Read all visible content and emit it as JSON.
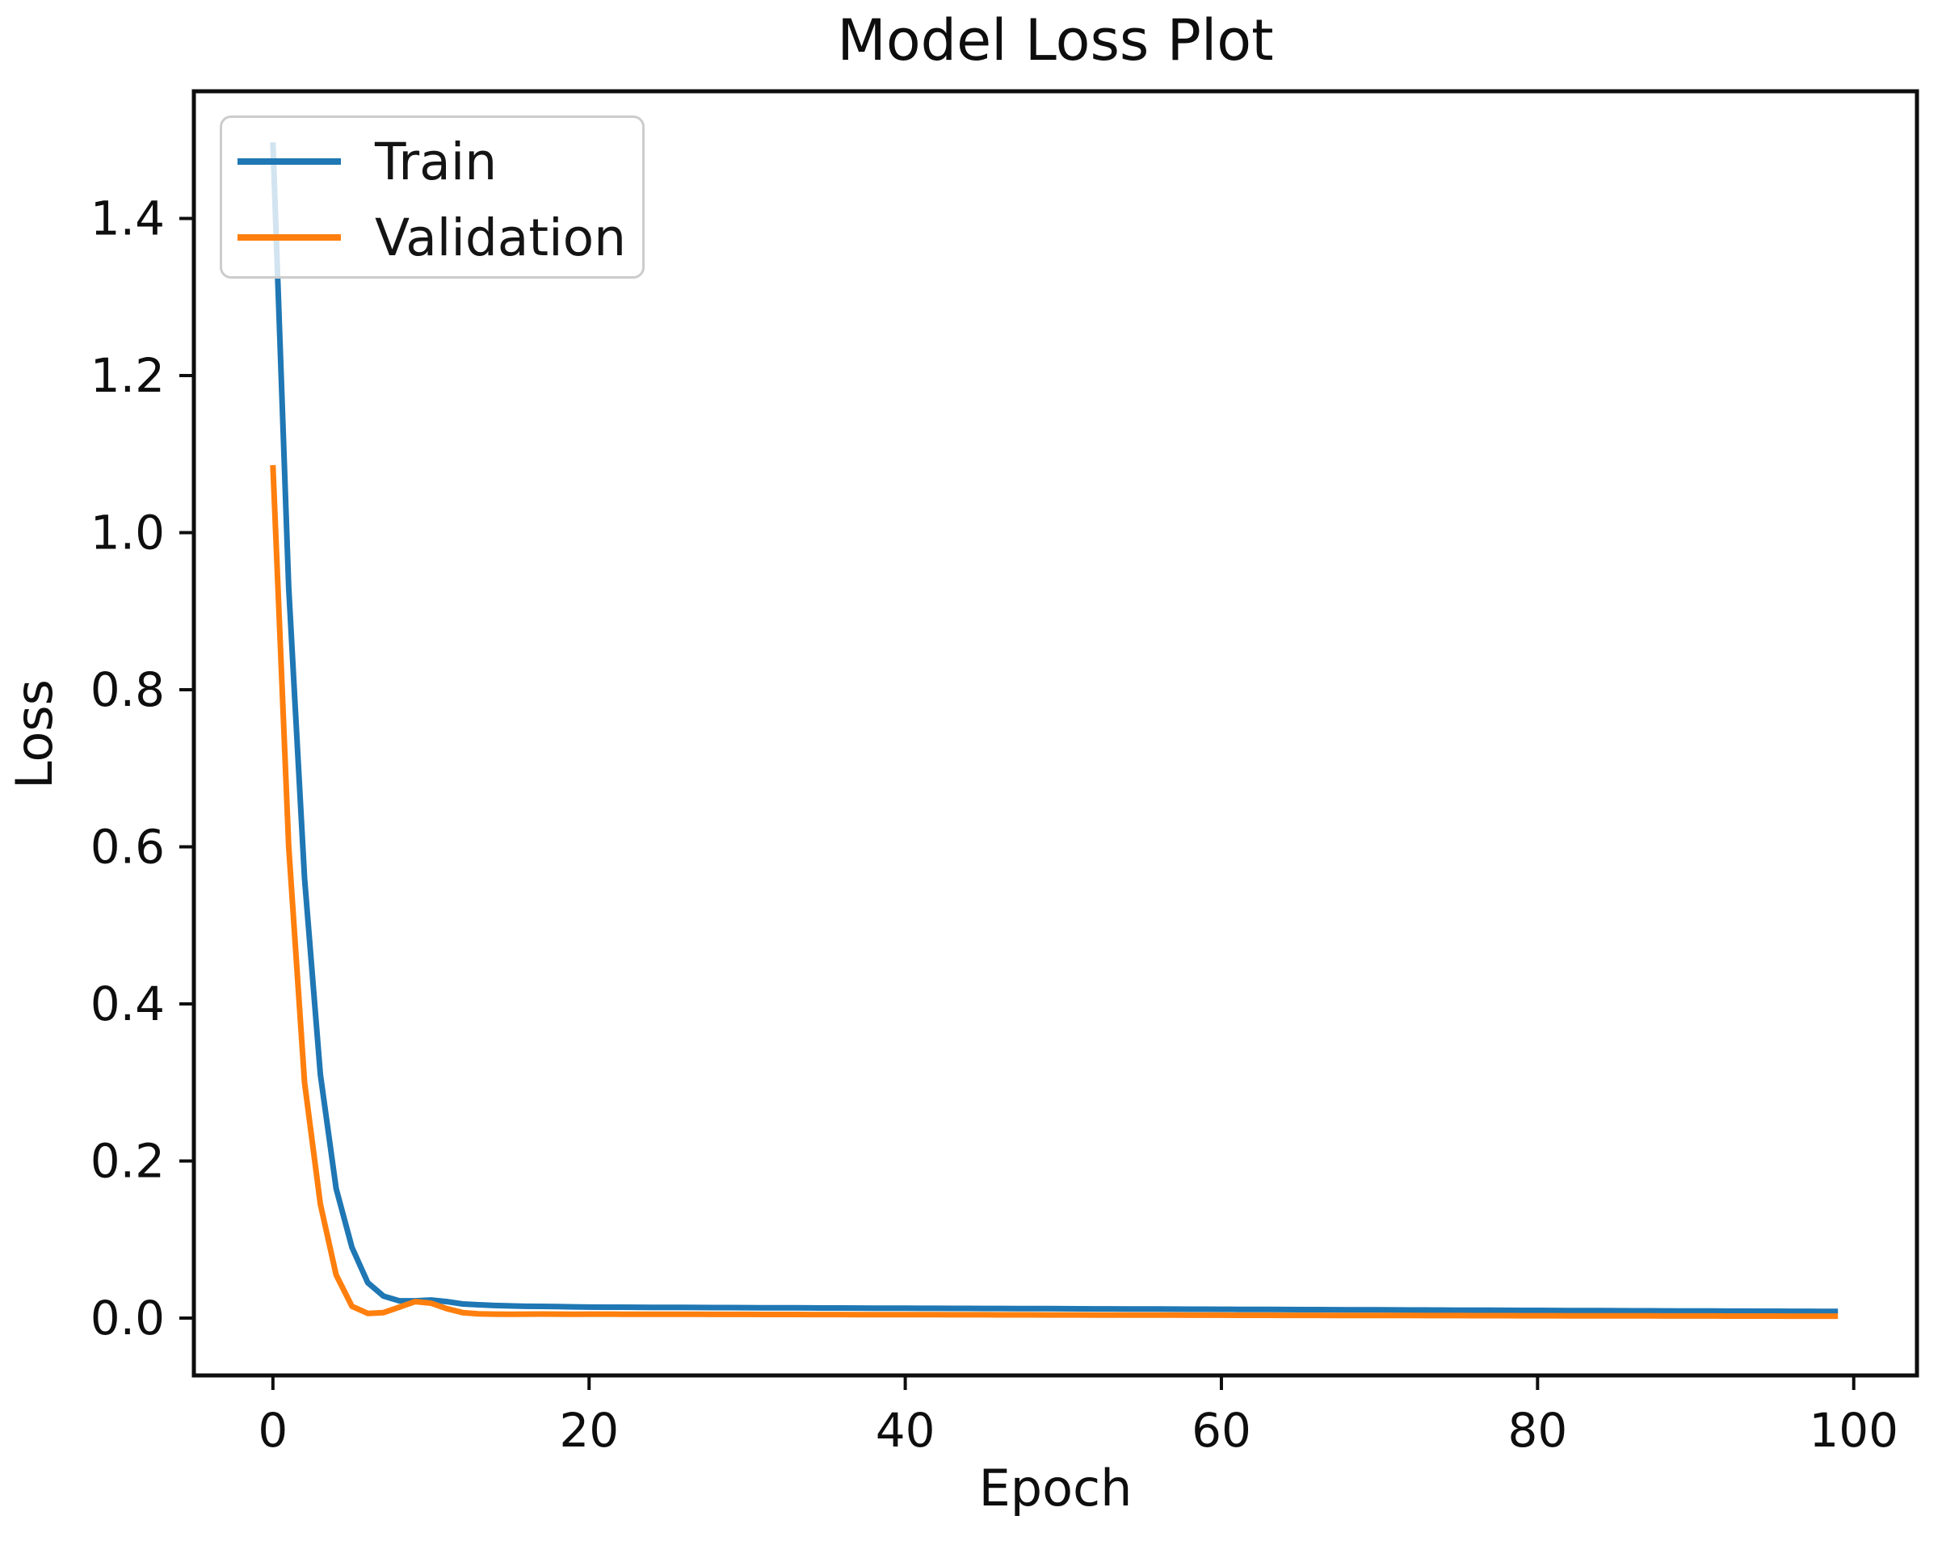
{
  "chart_data": {
    "type": "line",
    "title": "Model Loss Plot",
    "xlabel": "Epoch",
    "ylabel": "Loss",
    "x_ticks": [
      0,
      20,
      40,
      60,
      80,
      100
    ],
    "y_ticks": [
      "0.0",
      "0.2",
      "0.4",
      "0.6",
      "0.8",
      "1.0",
      "1.2",
      "1.4"
    ],
    "xlim": [
      -5,
      104
    ],
    "ylim": [
      -0.073,
      1.562
    ],
    "grid": false,
    "legend_position": "upper left",
    "epochs": {
      "start": 0,
      "end": 99
    },
    "series": [
      {
        "name": "Train",
        "color": "#1f77b4",
        "values": [
          1.497,
          0.93,
          0.56,
          0.31,
          0.165,
          0.09,
          0.045,
          0.028,
          0.022,
          0.022,
          0.023,
          0.021,
          0.018,
          0.017,
          0.016,
          0.0155,
          0.015,
          0.0149,
          0.0146,
          0.0143,
          0.014,
          0.0139,
          0.0139,
          0.0138,
          0.0137,
          0.0137,
          0.0136,
          0.0135,
          0.0134,
          0.0134,
          0.0133,
          0.0132,
          0.0132,
          0.0131,
          0.013,
          0.0129,
          0.0129,
          0.0128,
          0.0127,
          0.0127,
          0.0126,
          0.0125,
          0.0125,
          0.0124,
          0.0123,
          0.0122,
          0.0122,
          0.0121,
          0.012,
          0.012,
          0.0119,
          0.0118,
          0.0117,
          0.0117,
          0.0116,
          0.0115,
          0.0115,
          0.0114,
          0.0113,
          0.0113,
          0.0112,
          0.0111,
          0.011,
          0.011,
          0.0109,
          0.0108,
          0.0108,
          0.0107,
          0.0106,
          0.0105,
          0.0105,
          0.0104,
          0.0103,
          0.0103,
          0.0102,
          0.0101,
          0.0101,
          0.01,
          0.0099,
          0.0098,
          0.0098,
          0.0097,
          0.0096,
          0.0096,
          0.0095,
          0.0094,
          0.0093,
          0.0093,
          0.0092,
          0.0091,
          0.0091,
          0.009,
          0.0089,
          0.0089,
          0.0088,
          0.0087,
          0.0086,
          0.0086,
          0.0085,
          0.0085
        ]
      },
      {
        "name": "Validation",
        "color": "#ff7f0e",
        "values": [
          1.086,
          0.6,
          0.3,
          0.145,
          0.055,
          0.015,
          0.006,
          0.007,
          0.014,
          0.021,
          0.019,
          0.012,
          0.007,
          0.0055,
          0.005,
          0.0048,
          0.005,
          0.0052,
          0.005,
          0.0048,
          0.005,
          0.005,
          0.0049,
          0.0049,
          0.0049,
          0.0048,
          0.0048,
          0.0048,
          0.0047,
          0.0047,
          0.0047,
          0.0046,
          0.0046,
          0.0046,
          0.0045,
          0.0045,
          0.0045,
          0.0044,
          0.0044,
          0.0044,
          0.0043,
          0.0043,
          0.0043,
          0.0042,
          0.0042,
          0.0042,
          0.0041,
          0.0041,
          0.0041,
          0.004,
          0.004,
          0.004,
          0.0039,
          0.0039,
          0.0039,
          0.0038,
          0.0038,
          0.0038,
          0.0037,
          0.0037,
          0.0037,
          0.0036,
          0.0036,
          0.0036,
          0.0035,
          0.0035,
          0.0035,
          0.0034,
          0.0034,
          0.0034,
          0.0033,
          0.0033,
          0.0033,
          0.0032,
          0.0032,
          0.0032,
          0.0031,
          0.0031,
          0.0031,
          0.003,
          0.003,
          0.003,
          0.0029,
          0.0029,
          0.0029,
          0.0028,
          0.0028,
          0.0028,
          0.0027,
          0.0027,
          0.0027,
          0.0027,
          0.0026,
          0.0026,
          0.0026,
          0.0026,
          0.0025,
          0.0025,
          0.0025,
          0.0025
        ]
      }
    ]
  }
}
